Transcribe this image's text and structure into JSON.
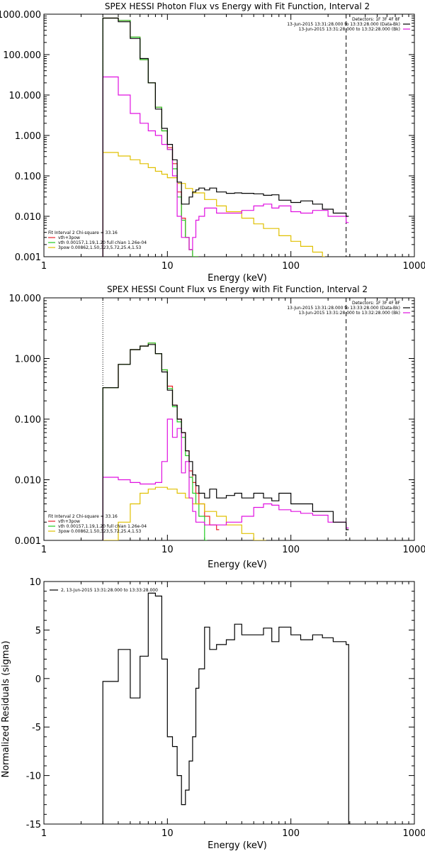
{
  "chart_data": [
    {
      "type": "line",
      "title": "SPEX HESSI Photon Flux vs Energy with Fit Function, Interval 2",
      "xlabel": "Energy (keV)",
      "ylabel": "",
      "x_scale": "log",
      "y_scale": "log",
      "xlim": [
        1,
        1000
      ],
      "ylim": [
        0.001,
        1000
      ],
      "x_ticks": [
        "1",
        "10",
        "100",
        "1000"
      ],
      "y_ticks": [
        "0.001",
        "0.010",
        "0.100",
        "1.000",
        "10.000",
        "100.000",
        "1000.000"
      ],
      "fit_range": [
        3,
        280
      ],
      "info_lines": [
        "Detectors: 1F 3F 4F 8F",
        "13-Jun-2015 13:31:28.000 to 13:33:28.000 (Data-Bk)",
        "13-Jun-2015 13:31:28.000 to 13:32:28.000 (Bk)"
      ],
      "legend_title": "Fit Interval  2   Chi-square = 33.16",
      "series": [
        {
          "name": "vth+3pow",
          "color": "#e8202a",
          "x": [
            3,
            4,
            5,
            6,
            7,
            8,
            9,
            10,
            11,
            12,
            13,
            14,
            15,
            16,
            17
          ],
          "y": [
            800,
            700,
            270,
            75,
            20,
            5,
            1.3,
            0.5,
            0.2,
            0.04,
            0.009,
            0.003,
            0.0015,
            0.001,
            0.001
          ]
        },
        {
          "name": "vth 0.00157,1.19,1.20  full chian 1.26e-04",
          "color": "#22cc22",
          "x": [
            3,
            4,
            5,
            6,
            7,
            8,
            9,
            10,
            11,
            12,
            13,
            14,
            15,
            16,
            17
          ],
          "y": [
            800,
            700,
            270,
            75,
            20,
            5,
            1.3,
            0.45,
            0.15,
            0.03,
            0.008,
            0.003,
            0.0015,
            0.001,
            0.001
          ]
        },
        {
          "name": "3pow 0.00862,1.50,323,5.72,25.4,1.53",
          "color": "#e0c000",
          "x": [
            3,
            4,
            5,
            6,
            7,
            8,
            9,
            10,
            12,
            14,
            16,
            20,
            25,
            30,
            40,
            50,
            60,
            80,
            100,
            120,
            150,
            180
          ],
          "y": [
            0.38,
            0.31,
            0.25,
            0.2,
            0.16,
            0.13,
            0.11,
            0.09,
            0.065,
            0.049,
            0.038,
            0.026,
            0.018,
            0.013,
            0.009,
            0.0065,
            0.005,
            0.0033,
            0.0024,
            0.0018,
            0.0013,
            0.001
          ]
        },
        {
          "name": "Background",
          "color": "#e010e0",
          "x": [
            3,
            4,
            5,
            6,
            7,
            8,
            9,
            10,
            11,
            12,
            13,
            14,
            15,
            16,
            17,
            18,
            20,
            25,
            30,
            40,
            50,
            60,
            70,
            80,
            100,
            120,
            150,
            200,
            280
          ],
          "y": [
            28,
            10,
            3.5,
            2,
            1.3,
            1,
            0.6,
            0.45,
            0.1,
            0.01,
            0.003,
            0.003,
            0.0015,
            0.003,
            0.008,
            0.01,
            0.016,
            0.012,
            0.012,
            0.014,
            0.018,
            0.02,
            0.016,
            0.018,
            0.013,
            0.012,
            0.014,
            0.01,
            0.007
          ]
        },
        {
          "name": "Data-Bk",
          "color": "#000000",
          "x": [
            3,
            4,
            5,
            6,
            7,
            8,
            9,
            10,
            11,
            12,
            13,
            14,
            15,
            16,
            17,
            18,
            20,
            22,
            25,
            30,
            35,
            40,
            50,
            60,
            70,
            80,
            100,
            120,
            150,
            180,
            220,
            280
          ],
          "y": [
            800,
            650,
            250,
            80,
            20,
            4.5,
            1.5,
            0.6,
            0.25,
            0.07,
            0.02,
            0.02,
            0.03,
            0.04,
            0.045,
            0.05,
            0.045,
            0.05,
            0.04,
            0.037,
            0.038,
            0.037,
            0.036,
            0.033,
            0.034,
            0.025,
            0.022,
            0.024,
            0.02,
            0.015,
            0.012,
            0.01
          ]
        }
      ]
    },
    {
      "type": "line",
      "title": "SPEX HESSI Count Flux vs Energy with Fit Function, Interval 2",
      "xlabel": "Energy (keV)",
      "ylabel": "",
      "x_scale": "log",
      "y_scale": "log",
      "xlim": [
        1,
        1000
      ],
      "ylim": [
        0.001,
        10
      ],
      "x_ticks": [
        "1",
        "10",
        "100",
        "1000"
      ],
      "y_ticks": [
        "0.001",
        "0.010",
        "0.100",
        "1.000",
        "10.000"
      ],
      "fit_range": [
        3,
        280
      ],
      "info_lines": [
        "Detectors: 1F 3F 4F 8F",
        "13-Jun-2015 13:31:28.000 to 13:33:28.000 (Data-Bk)",
        "13-Jun-2015 13:31:28.000 to 13:32:28.000 (Bk)"
      ],
      "legend_title": "Fit Interval  2   Chi-square = 33.16",
      "series": [
        {
          "name": "vth+3pow",
          "color": "#e8202a",
          "x": [
            3,
            4,
            5,
            6,
            7,
            8,
            9,
            10,
            11,
            12,
            13,
            14,
            15,
            16,
            17,
            18,
            20,
            22,
            25
          ],
          "y": [
            0.33,
            0.8,
            1.4,
            1.6,
            1.8,
            1.2,
            0.65,
            0.35,
            0.17,
            0.1,
            0.06,
            0.03,
            0.014,
            0.009,
            0.006,
            0.004,
            0.0025,
            0.0018,
            0.0015
          ]
        },
        {
          "name": "vth 0.00157,1.19,1.20  full chian 1.26e-04",
          "color": "#22cc22",
          "x": [
            3,
            4,
            5,
            6,
            7,
            8,
            9,
            10,
            11,
            12,
            13,
            14,
            15,
            16,
            17,
            18,
            20
          ],
          "y": [
            0.33,
            0.8,
            1.4,
            1.6,
            1.8,
            1.2,
            0.65,
            0.32,
            0.16,
            0.09,
            0.05,
            0.025,
            0.011,
            0.006,
            0.004,
            0.0025,
            0.001
          ]
        },
        {
          "name": "3pow 0.00862,1.50,323,5.72,25.4,1.53",
          "color": "#e0c000",
          "x": [
            3,
            4,
            5,
            6,
            7,
            8,
            9,
            10,
            12,
            14,
            16,
            20,
            25,
            30,
            40,
            50,
            60
          ],
          "y": [
            0.001,
            0.002,
            0.004,
            0.006,
            0.007,
            0.0075,
            0.0075,
            0.007,
            0.006,
            0.005,
            0.004,
            0.003,
            0.0025,
            0.0018,
            0.0013,
            0.001,
            0.001
          ]
        },
        {
          "name": "Background",
          "color": "#e010e0",
          "x": [
            3,
            4,
            5,
            6,
            7,
            8,
            9,
            10,
            11,
            12,
            13,
            14,
            15,
            16,
            17,
            18,
            20,
            25,
            30,
            40,
            50,
            60,
            70,
            80,
            100,
            120,
            150,
            200,
            280
          ],
          "y": [
            0.011,
            0.01,
            0.009,
            0.0085,
            0.0085,
            0.009,
            0.02,
            0.1,
            0.05,
            0.07,
            0.013,
            0.02,
            0.005,
            0.003,
            0.002,
            0.002,
            0.0018,
            0.0018,
            0.002,
            0.0025,
            0.0035,
            0.004,
            0.0038,
            0.0032,
            0.003,
            0.0028,
            0.0026,
            0.002,
            0.0016
          ]
        },
        {
          "name": "Data-Bk",
          "color": "#000000",
          "x": [
            3,
            4,
            5,
            6,
            7,
            8,
            9,
            10,
            11,
            12,
            13,
            14,
            15,
            16,
            17,
            18,
            20,
            22,
            25,
            30,
            35,
            40,
            50,
            60,
            70,
            80,
            100,
            120,
            150,
            180,
            220,
            280
          ],
          "y": [
            0.33,
            0.8,
            1.4,
            1.6,
            1.7,
            1.2,
            0.6,
            0.3,
            0.17,
            0.1,
            0.06,
            0.03,
            0.02,
            0.012,
            0.008,
            0.006,
            0.005,
            0.007,
            0.005,
            0.0055,
            0.006,
            0.005,
            0.006,
            0.005,
            0.0045,
            0.006,
            0.004,
            0.004,
            0.003,
            0.003,
            0.002,
            0.0015
          ]
        }
      ]
    },
    {
      "type": "line",
      "title": "",
      "xlabel": "Energy (keV)",
      "ylabel": "Normalized Residuals (sigma)",
      "x_scale": "log",
      "y_scale": "linear",
      "xlim": [
        1,
        1000
      ],
      "ylim": [
        -15,
        10
      ],
      "x_ticks": [
        "1",
        "10",
        "100",
        "1000"
      ],
      "y_ticks": [
        "-15",
        "-10",
        "-5",
        "0",
        "5",
        "10"
      ],
      "legend": "2, 13-Jun-2015 13:31:28.000 to 13:33:28.000",
      "series": [
        {
          "name": "2, 13-Jun-2015 13:31:28.000 to 13:33:28.000",
          "color": "#000000",
          "x": [
            3,
            4,
            5,
            6,
            7,
            8,
            9,
            10,
            11,
            12,
            13,
            14,
            15,
            16,
            17,
            18,
            20,
            22,
            25,
            30,
            35,
            40,
            50,
            60,
            70,
            80,
            100,
            120,
            150,
            180,
            220,
            280
          ],
          "y": [
            -0.3,
            3,
            -2,
            2.3,
            8.8,
            8.5,
            2,
            -6,
            -7,
            -10,
            -13,
            -11.5,
            -8.5,
            -6,
            -1,
            1,
            5.3,
            3,
            3.5,
            4,
            5.6,
            4.5,
            4.5,
            5.2,
            3.8,
            5.3,
            4.5,
            4,
            4.5,
            4.2,
            3.8,
            3.5
          ]
        }
      ]
    }
  ]
}
